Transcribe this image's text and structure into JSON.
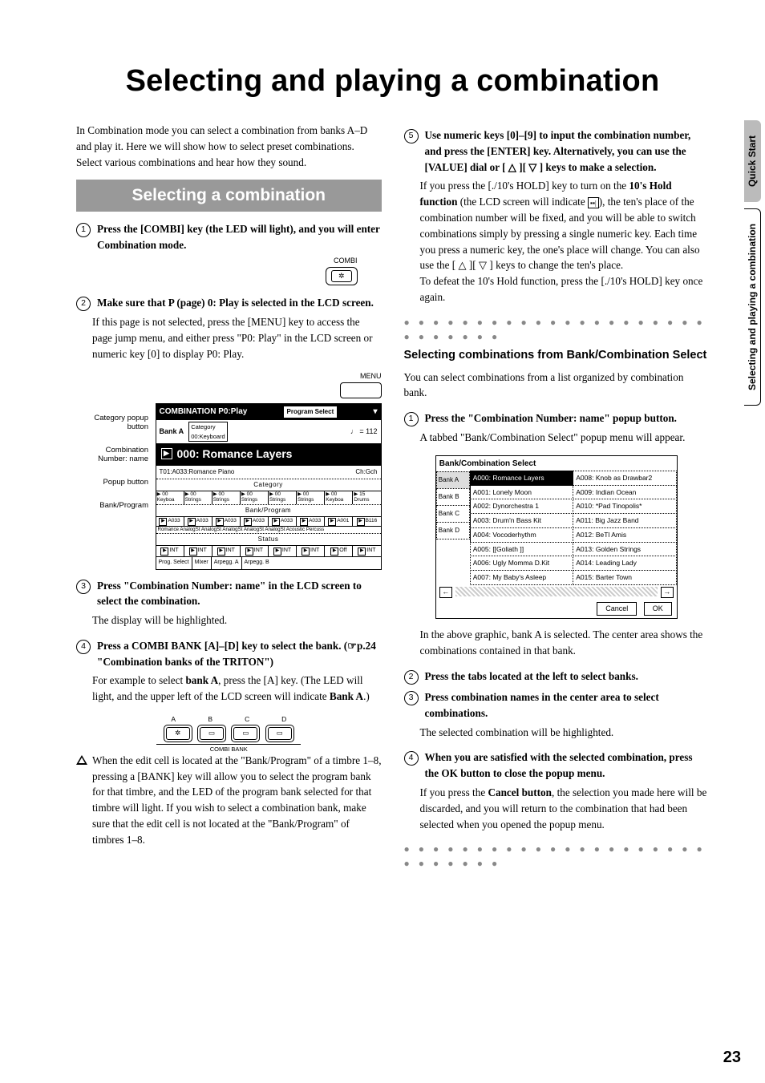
{
  "title": "Selecting and playing a combination",
  "pageNumber": "23",
  "sideTabs": {
    "upper": "Quick Start",
    "lower": "Selecting and playing a combination"
  },
  "left": {
    "intro": "In Combination mode you can select a combination from banks A–D and play it. Here we will show how to select preset combinations. Select various combinations and hear how they sound.",
    "sectionBar": "Selecting a combination",
    "step1": "Press the [COMBI] key (the LED will light), and you will enter Combination mode.",
    "combiLabel": "COMBI",
    "step2": "Make sure that P (page) 0: Play is selected in the LCD screen.",
    "step2_body": "If this page is not selected, press the [MENU] key to access the page jump menu, and either press \"P0: Play\" in the LCD screen or numeric key [0] to display P0: Play.",
    "menuLabel": "MENU",
    "lcdLabels": {
      "l1": "Category popup button",
      "l2": "Combination Number: name",
      "l3": "Popup button",
      "l4": "Bank/Program"
    },
    "lcd": {
      "head_left": "COMBINATION P0:Play",
      "head_right": "Program Select",
      "bankA": "Bank A",
      "catLabel": "Category",
      "catValue": "00:Keyboard",
      "tempo": "♩ = 112",
      "bigName": "000: Romance Layers",
      "sub_l": "T01:A033:Romance Piano",
      "sub_r": "Ch:Gch",
      "sec_cat": "Category",
      "cats": [
        "00 Keyboa",
        "00 Strings",
        "00 Strings",
        "00 Strings",
        "00 Strings",
        "00 Strings",
        "00 Keyboa",
        "15 Drums"
      ],
      "sec_bp": "Bank/Program",
      "bp_nums": [
        "A033",
        "A033",
        "A033",
        "A033",
        "A033",
        "A033",
        "A001",
        "B116"
      ],
      "bp_names": "Romance AnalogSt AnalogSt AnalogSt AnalogSt AnalogSt Acoustic Percuss",
      "sec_status": "Status",
      "status": [
        "INT",
        "INT",
        "INT",
        "INT",
        "INT",
        "INT",
        "Off",
        "INT"
      ],
      "bot": [
        "Prog. Select",
        "Mixer",
        "Arpegg. A",
        "Arpegg. B"
      ]
    },
    "step3": "Press \"Combination Number: name\" in the LCD screen to select the combination.",
    "step3_body": "The display will be highlighted.",
    "step4": "Press a COMBI BANK [A]–[D] key to select the bank. (☞p.24 \"Combination banks of the TRITON\")",
    "step4_body_a": "For example to select ",
    "step4_body_bankA": "bank A",
    "step4_body_b": ", press the [A] key. (The LED will light, and the upper left of the LCD screen will indicate ",
    "step4_body_bankA2": "Bank A",
    "step4_body_c": ".)",
    "bankKeys": {
      "A": "A",
      "B": "B",
      "C": "C",
      "D": "D",
      "caption": "COMBI BANK"
    },
    "note": "When the edit cell is located at the \"Bank/Program\" of a timbre 1–8, pressing a [BANK] key will allow you to select the program bank for that timbre, and the LED of the program bank selected for that timbre will light. If you wish to select a combination bank, make sure that the edit cell is not located at the \"Bank/Program\" of timbres 1–8."
  },
  "right": {
    "step5": "Use numeric keys [0]–[9] to input the combination number, and press the [ENTER] key. Alternatively, you can use the [VALUE] dial or [ △ ][ ▽ ] keys to make a selection.",
    "p1a": "If you press the [./10's HOLD] key to turn on the ",
    "p1_hold": "10's Hold function",
    "p1b": " (the LCD screen will indicate ",
    "p1_icon": "▪▪|",
    "p1c": "), the ten's place of the combination number will be fixed, and you will be able to switch combinations simply by pressing a single numeric key. Each time you press a numeric key, the one's place will change. You can also use the [ △ ][ ▽ ] keys to change the ten's place.",
    "p1d": "To defeat the 10's Hold function, press the [./10's HOLD] key once again.",
    "dots": "● ● ● ● ● ● ● ● ● ● ● ● ● ● ● ● ● ● ● ● ● ● ● ● ● ● ● ●",
    "subH": "Selecting combinations from Bank/Combination Select",
    "subP": "You can select combinations from a list organized by combination bank.",
    "step1": "Press the \"Combination Number: name\" popup button.",
    "step1_body": "A tabbed \"Bank/Combination Select\" popup menu will appear.",
    "popup": {
      "title": "Bank/Combination Select",
      "tabs": [
        "Bank A",
        "Bank B",
        "Bank C",
        "Bank D"
      ],
      "rows": [
        [
          "A000: Romance Layers",
          "A008: Knob as Drawbar2"
        ],
        [
          "A001: Lonely Moon",
          "A009: Indian Ocean"
        ],
        [
          "A002: Dynorchestra 1",
          "A010: *Pad Tinopolis*"
        ],
        [
          "A003: Drum'n Bass Kit",
          "A011: Big Jazz Band"
        ],
        [
          "A004: Vocoderhythm",
          "A012: BeTl Amis"
        ],
        [
          "A005: [[Goliath ]]",
          "A013: Golden Strings"
        ],
        [
          "A006: Ugly Momma D.Kit",
          "A014: Leading Lady"
        ],
        [
          "A007: My Baby's Asleep",
          "A015: Barter Town"
        ]
      ],
      "cancel": "Cancel",
      "ok": "OK"
    },
    "p2": "In the above graphic, bank A is selected. The center area shows the combinations contained in that bank.",
    "step2": "Press the tabs located at the left to select banks.",
    "step3": "Press combination names in the center area to select combinations.",
    "step3_body": "The selected combination will be highlighted.",
    "step4": "When you are satisfied with the selected combination, press the OK button to close the popup menu.",
    "step4_body_a": "If you press the ",
    "step4_body_cancel": "Cancel button",
    "step4_body_b": ", the selection you made here will be discarded, and you will return to the combination that had been selected when you opened the popup menu."
  }
}
